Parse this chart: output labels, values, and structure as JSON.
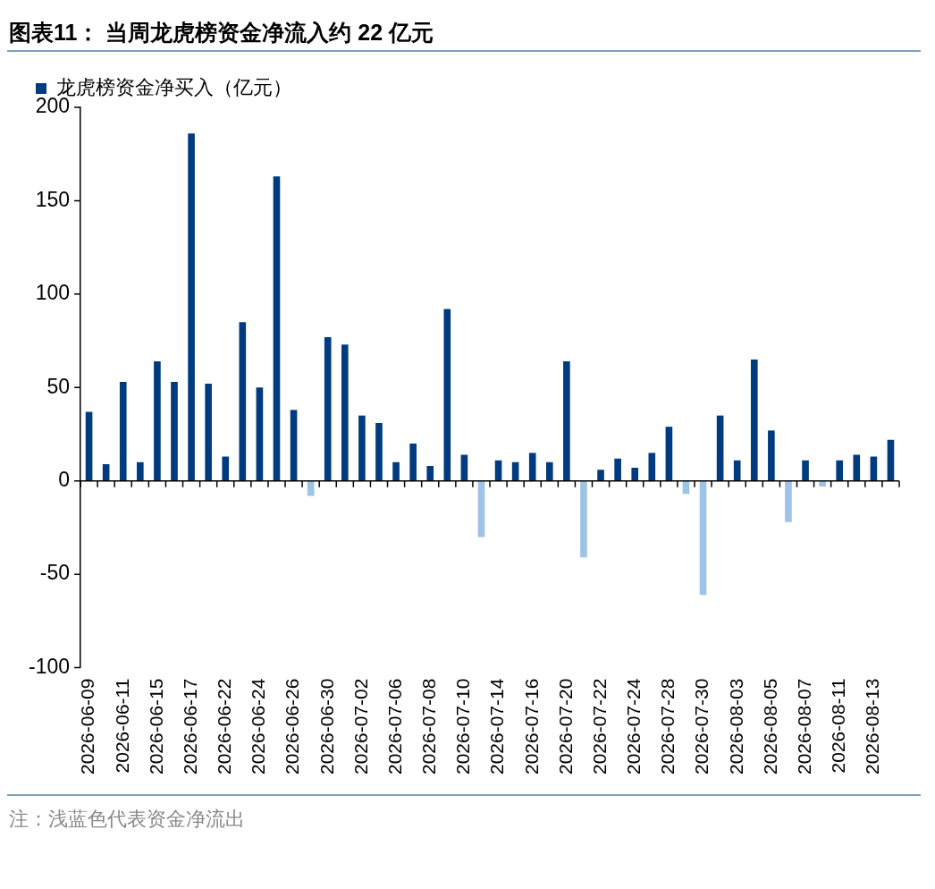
{
  "chart_data": {
    "type": "bar",
    "title": "图表11：  当周龙虎榜资金净流入约 22 亿元",
    "categories": [
      "2026-06-09",
      null,
      "2026-06-11",
      null,
      "2026-06-15",
      null,
      "2026-06-17",
      null,
      "2026-06-22",
      null,
      "2026-06-24",
      null,
      "2026-06-26",
      null,
      "2026-06-30",
      null,
      "2026-07-02",
      null,
      "2026-07-06",
      null,
      "2026-07-08",
      null,
      "2026-07-10",
      null,
      "2026-07-14",
      null,
      "2026-07-16",
      null,
      "2026-07-20",
      null,
      "2026-07-22",
      null,
      "2026-07-24",
      null,
      "2026-07-28",
      null,
      "2026-07-30",
      null,
      "2026-08-03",
      null,
      "2026-08-05",
      null,
      "2026-08-07",
      null,
      "2026-08-11",
      null,
      "2026-08-13",
      null
    ],
    "series": [
      {
        "name": "龙虎榜资金净买入（亿元）",
        "color": "#003b7f",
        "values": [
          37,
          9,
          53,
          10,
          64,
          53,
          186,
          52,
          13,
          85,
          50,
          163,
          38,
          -8,
          77,
          73,
          35,
          31,
          10,
          20,
          8,
          92,
          14,
          -30,
          11,
          10,
          15,
          10,
          64,
          -41,
          6,
          12,
          7,
          15,
          29,
          -7,
          -61,
          35,
          11,
          65,
          27,
          -22,
          11,
          -3,
          11,
          14,
          13,
          22
        ],
        "colors": [
          "#003b7f",
          "#003b7f",
          "#003b7f",
          "#003b7f",
          "#003b7f",
          "#003b7f",
          "#003b7f",
          "#003b7f",
          "#003b7f",
          "#003b7f",
          "#003b7f",
          "#003b7f",
          "#003b7f",
          "#9dc3e6",
          "#003b7f",
          "#003b7f",
          "#003b7f",
          "#003b7f",
          "#003b7f",
          "#003b7f",
          "#003b7f",
          "#003b7f",
          "#003b7f",
          "#9dc3e6",
          "#003b7f",
          "#003b7f",
          "#003b7f",
          "#003b7f",
          "#003b7f",
          "#9dc3e6",
          "#003b7f",
          "#003b7f",
          "#003b7f",
          "#003b7f",
          "#003b7f",
          "#9dc3e6",
          "#9dc3e6",
          "#003b7f",
          "#003b7f",
          "#003b7f",
          "#003b7f",
          "#9dc3e6",
          "#003b7f",
          "#9dc3e6",
          "#003b7f",
          "#003b7f",
          "#003b7f",
          "#003b7f"
        ]
      }
    ],
    "ylim": [
      -100,
      200
    ],
    "yticks": [
      -100,
      -50,
      0,
      50,
      100,
      150,
      200
    ],
    "grid": false,
    "ref_lines": [
      {
        "axis": "y",
        "value": 0
      }
    ],
    "legend": "top left",
    "annotations": [
      "注：浅蓝色代表资金净流出"
    ]
  }
}
